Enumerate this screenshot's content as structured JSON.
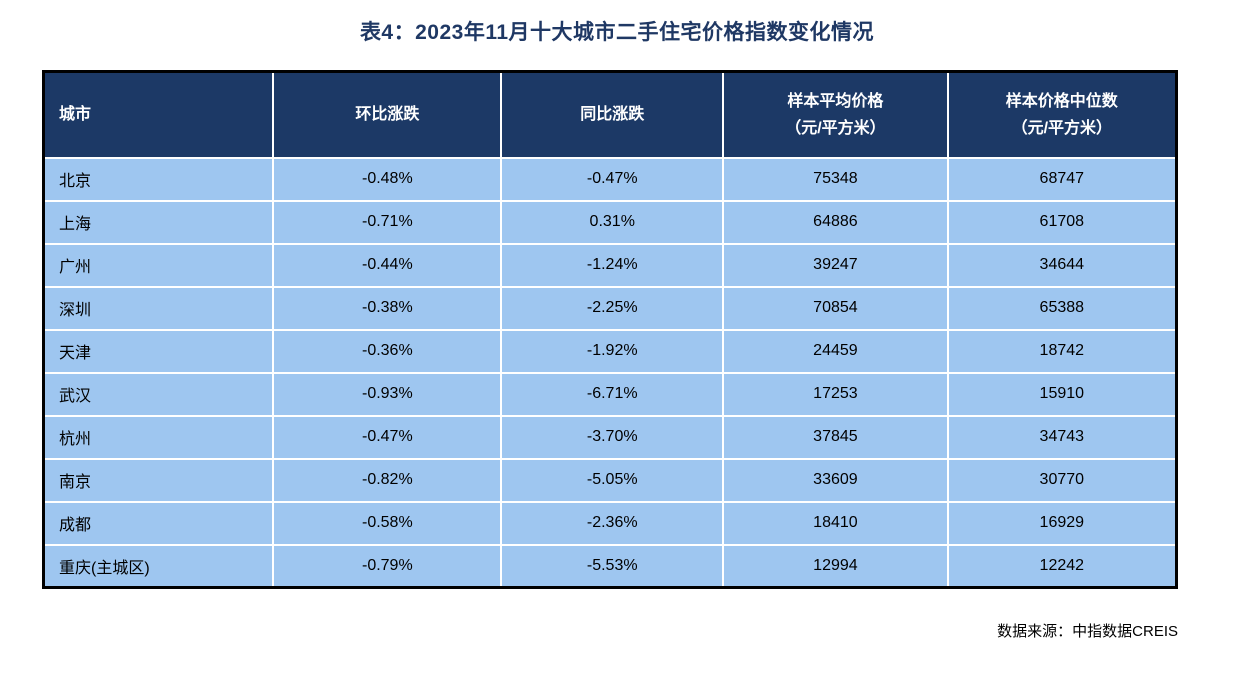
{
  "page": {
    "title": "表4：2023年11月十大城市二手住宅价格指数变化情况",
    "source_note": "数据来源：中指数据CREIS"
  },
  "colors": {
    "title_text": "#1F3864",
    "header_bg": "#1C3966",
    "header_text": "#FFFFFF",
    "row_bg": "#9EC6F0",
    "row_text": "#000000",
    "grid_line": "#FFFFFF",
    "outer_border": "#000000",
    "page_bg": "#FFFFFF"
  },
  "table": {
    "columns": [
      {
        "key": "city",
        "label": "城市"
      },
      {
        "key": "mom_change",
        "label": "环比涨跌"
      },
      {
        "key": "yoy_change",
        "label": "同比涨跌"
      },
      {
        "key": "sample_avg_price",
        "label": "样本平均价格\n（元/平方米）"
      },
      {
        "key": "sample_median_price",
        "label": "样本价格中位数\n（元/平方米）"
      }
    ],
    "rows": [
      [
        "北京",
        "-0.48%",
        "-0.47%",
        "75348",
        "68747"
      ],
      [
        "上海",
        "-0.71%",
        "0.31%",
        "64886",
        "61708"
      ],
      [
        "广州",
        "-0.44%",
        "-1.24%",
        "39247",
        "34644"
      ],
      [
        "深圳",
        "-0.38%",
        "-2.25%",
        "70854",
        "65388"
      ],
      [
        "天津",
        "-0.36%",
        "-1.92%",
        "24459",
        "18742"
      ],
      [
        "武汉",
        "-0.93%",
        "-6.71%",
        "17253",
        "15910"
      ],
      [
        "杭州",
        "-0.47%",
        "-3.70%",
        "37845",
        "34743"
      ],
      [
        "南京",
        "-0.82%",
        "-5.05%",
        "33609",
        "30770"
      ],
      [
        "成都",
        "-0.58%",
        "-2.36%",
        "18410",
        "16929"
      ],
      [
        "重庆(主城区)",
        "-0.79%",
        "-5.53%",
        "12994",
        "12242"
      ]
    ]
  },
  "chart_data": {
    "type": "table",
    "title": "表4：2023年11月十大城市二手住宅价格指数变化情况",
    "columns": [
      "城市",
      "环比涨跌",
      "同比涨跌",
      "样本平均价格（元/平方米）",
      "样本价格中位数（元/平方米）"
    ],
    "rows": [
      {
        "city": "北京",
        "mom_change_pct": -0.48,
        "yoy_change_pct": -0.47,
        "sample_avg_price": 75348,
        "sample_median_price": 68747
      },
      {
        "city": "上海",
        "mom_change_pct": -0.71,
        "yoy_change_pct": 0.31,
        "sample_avg_price": 64886,
        "sample_median_price": 61708
      },
      {
        "city": "广州",
        "mom_change_pct": -0.44,
        "yoy_change_pct": -1.24,
        "sample_avg_price": 39247,
        "sample_median_price": 34644
      },
      {
        "city": "深圳",
        "mom_change_pct": -0.38,
        "yoy_change_pct": -2.25,
        "sample_avg_price": 70854,
        "sample_median_price": 65388
      },
      {
        "city": "天津",
        "mom_change_pct": -0.36,
        "yoy_change_pct": -1.92,
        "sample_avg_price": 24459,
        "sample_median_price": 18742
      },
      {
        "city": "武汉",
        "mom_change_pct": -0.93,
        "yoy_change_pct": -6.71,
        "sample_avg_price": 17253,
        "sample_median_price": 15910
      },
      {
        "city": "杭州",
        "mom_change_pct": -0.47,
        "yoy_change_pct": -3.7,
        "sample_avg_price": 37845,
        "sample_median_price": 34743
      },
      {
        "city": "南京",
        "mom_change_pct": -0.82,
        "yoy_change_pct": -5.05,
        "sample_avg_price": 33609,
        "sample_median_price": 30770
      },
      {
        "city": "成都",
        "mom_change_pct": -0.58,
        "yoy_change_pct": -2.36,
        "sample_avg_price": 18410,
        "sample_median_price": 16929
      },
      {
        "city": "重庆(主城区)",
        "mom_change_pct": -0.79,
        "yoy_change_pct": -5.53,
        "sample_avg_price": 12994,
        "sample_median_price": 12242
      }
    ],
    "source": "数据来源：中指数据CREIS"
  }
}
